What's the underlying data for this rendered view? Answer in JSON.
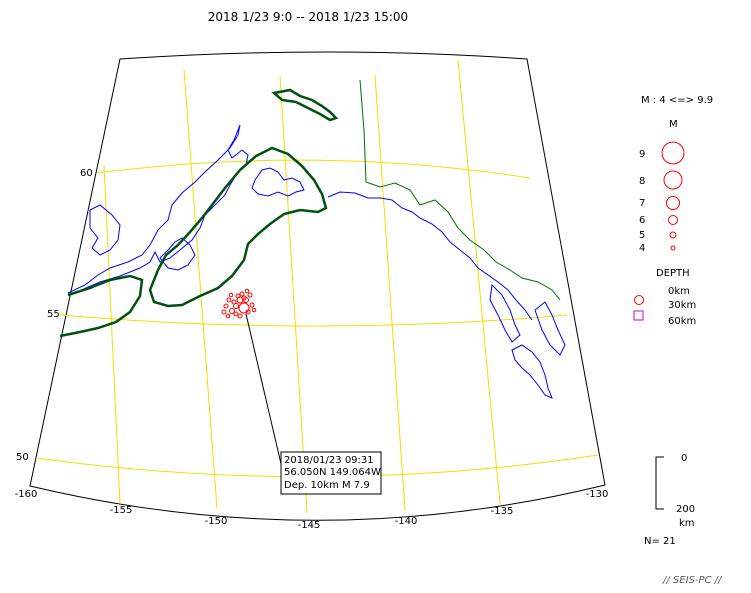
{
  "header": {
    "time_range": "2018 1/23 9:0 -- 2018 1/23 15:00"
  },
  "map": {
    "graticule_color": "#f0e000",
    "coast_color": "#0000ff",
    "border_color": "#007000",
    "tectonic_color": "#005010",
    "lon_labels": [
      "-160",
      "-155",
      "-150",
      "-145",
      "-140",
      "-135",
      "-130"
    ],
    "lat_labels": [
      "60",
      "55",
      "50"
    ]
  },
  "legend": {
    "magnitude_range": "M : 4 <=> 9.9",
    "magnitude_title": "M",
    "magnitudes": [
      "9",
      "8",
      "7",
      "6",
      "5",
      "4"
    ],
    "depth_title": "DEPTH",
    "depths": [
      "0km",
      "30km",
      "60km"
    ],
    "circle_color": "#ff0000",
    "square_color": "#cc00cc"
  },
  "depth_scale": {
    "top": "0",
    "bottom": "200",
    "unit": "km"
  },
  "count": "N= 21",
  "event_callout": {
    "line1": "2018/01/23 09:31",
    "line2": "56.050N  149.064W",
    "line3": "Dep. 10km    M 7.9"
  },
  "credit": "// SEIS-PC //"
}
